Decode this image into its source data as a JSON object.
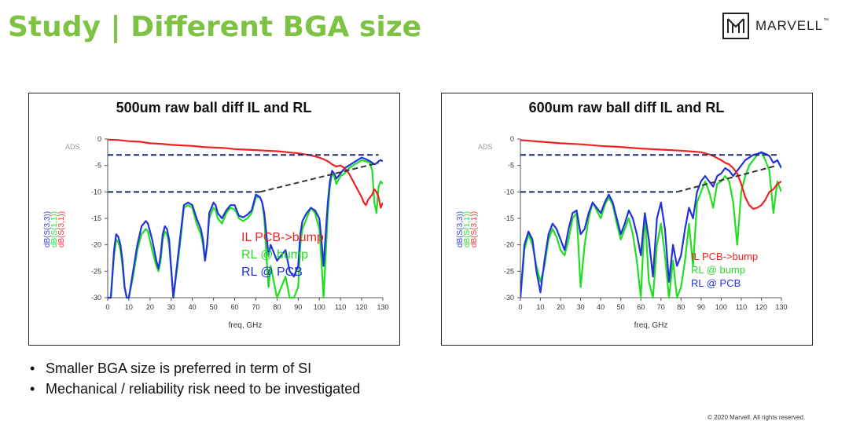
{
  "slide": {
    "title": "Study | Different BGA size",
    "logo_text": "MARVELL",
    "logo_tm": "™",
    "bullet_glyph": "•",
    "bullets": [
      "Smaller BGA size is preferred in term of SI",
      "Mechanical / reliability risk need to be investigated"
    ],
    "footer": "© 2020 Marvell. All rights reserved."
  },
  "chart_data": [
    {
      "type": "line",
      "title": "500um raw ball diff IL and RL",
      "watermark": "ADS",
      "xlabel": "freq, GHz",
      "ylabels": [
        {
          "text": "dB(S(3,3))",
          "color": "#3344dd"
        },
        {
          "text": "dB(S(1,1))",
          "color": "#33dd33"
        },
        {
          "text": "dB(S(3,1))",
          "color": "#ee3333"
        }
      ],
      "xlim": [
        0,
        130
      ],
      "ylim": [
        -30,
        0
      ],
      "xticks": [
        0,
        10,
        20,
        30,
        40,
        50,
        60,
        70,
        80,
        90,
        100,
        110,
        120,
        130
      ],
      "yticks": [
        0,
        -5,
        -10,
        -15,
        -20,
        -25,
        -30
      ],
      "legend_position": "bottom-center",
      "series": [
        {
          "name": "RL @ bump",
          "color": "#22dd22",
          "x": [
            0,
            1.5,
            3,
            4,
            5,
            6,
            7,
            8,
            9,
            10,
            12,
            14,
            16,
            18,
            19,
            21,
            23,
            24,
            25,
            26,
            27,
            28,
            29,
            31,
            33,
            35,
            36,
            38,
            40,
            42,
            44,
            45,
            46,
            47,
            48,
            50,
            51,
            52,
            54,
            56,
            58,
            60,
            61,
            62,
            64,
            66,
            68,
            70,
            72,
            73,
            74,
            75,
            76,
            77,
            78,
            80,
            82,
            84,
            86,
            88,
            90,
            91,
            92,
            94,
            96,
            98,
            100,
            101,
            102,
            103,
            104,
            105,
            106,
            107,
            108,
            110,
            112,
            114,
            116,
            118,
            120,
            122,
            124,
            125,
            126,
            127,
            128,
            129,
            130
          ],
          "y": [
            -30,
            -30,
            -22,
            -19,
            -19.5,
            -21,
            -24,
            -28,
            -30,
            -30,
            -26,
            -21,
            -18,
            -17,
            -17.5,
            -21,
            -24,
            -25,
            -23,
            -19,
            -17.5,
            -18,
            -20,
            -30,
            -24,
            -17,
            -13,
            -12.5,
            -13,
            -16,
            -18,
            -20,
            -23,
            -20,
            -15,
            -13,
            -13.5,
            -15,
            -16,
            -14,
            -13,
            -13.3,
            -14,
            -15,
            -15.5,
            -15,
            -14,
            -11,
            -11,
            -12,
            -15,
            -22,
            -28,
            -24,
            -26,
            -30,
            -28,
            -26,
            -30,
            -30,
            -28,
            -20,
            -17,
            -15,
            -13,
            -14,
            -17,
            -23,
            -30,
            -22,
            -14,
            -9,
            -6.5,
            -7,
            -8.5,
            -7,
            -6.5,
            -5.5,
            -5,
            -4.5,
            -4,
            -4.2,
            -4.5,
            -6,
            -12,
            -14,
            -9,
            -8,
            -8.5
          ]
        },
        {
          "name": "RL @ PCB",
          "color": "#2233dd",
          "x": [
            0,
            1.5,
            3,
            4,
            5,
            6,
            7,
            8,
            9,
            10,
            12,
            14,
            16,
            18,
            19,
            21,
            23,
            24,
            25,
            26,
            27,
            28,
            29,
            31,
            33,
            35,
            36,
            38,
            40,
            42,
            44,
            45,
            46,
            47,
            48,
            50,
            51,
            52,
            54,
            56,
            58,
            60,
            61,
            62,
            64,
            66,
            68,
            70,
            72,
            73,
            74,
            75,
            76,
            77,
            78,
            80,
            82,
            84,
            86,
            88,
            90,
            91,
            92,
            94,
            96,
            98,
            100,
            101,
            102,
            103,
            104,
            105,
            106,
            107,
            108,
            110,
            112,
            114,
            116,
            118,
            120,
            122,
            124,
            125,
            126,
            127,
            128,
            129,
            130
          ],
          "y": [
            -30,
            -30,
            -21,
            -18,
            -18.5,
            -20,
            -23,
            -28,
            -30,
            -30,
            -25,
            -20,
            -16.5,
            -15.5,
            -16,
            -19,
            -23,
            -24.5,
            -22,
            -18,
            -16.5,
            -17,
            -19,
            -30,
            -23,
            -16,
            -12.5,
            -12,
            -12.5,
            -15,
            -17,
            -19,
            -23,
            -20,
            -14,
            -12,
            -12.5,
            -14,
            -15,
            -13.5,
            -12.5,
            -12.5,
            -13.5,
            -14.5,
            -14.8,
            -14.3,
            -13.5,
            -10.5,
            -11,
            -12,
            -14,
            -18,
            -22,
            -20,
            -21,
            -23,
            -22,
            -21,
            -25,
            -26,
            -24,
            -18,
            -15.5,
            -14,
            -13,
            -13.5,
            -15,
            -19,
            -24,
            -18,
            -12,
            -8,
            -6,
            -6.5,
            -7.5,
            -6.5,
            -5.5,
            -5,
            -4.5,
            -4,
            -3.5,
            -3.8,
            -4.2,
            -4.5,
            -4.8,
            -4.6,
            -4.2,
            -4,
            -4.2
          ]
        },
        {
          "name": "IL PCB->bump",
          "color": "#ee2222",
          "x": [
            0,
            5,
            10,
            15,
            20,
            25,
            30,
            35,
            40,
            45,
            50,
            55,
            60,
            65,
            70,
            75,
            80,
            85,
            90,
            95,
            100,
            102,
            104,
            106,
            108,
            110,
            112,
            114,
            116,
            118,
            120,
            121,
            122,
            123,
            124,
            125,
            126,
            127,
            128,
            129,
            130
          ],
          "y": [
            -0.1,
            -0.2,
            -0.4,
            -0.5,
            -0.8,
            -0.9,
            -1.1,
            -1.2,
            -1.3,
            -1.5,
            -1.6,
            -1.7,
            -1.9,
            -2,
            -2.1,
            -2.2,
            -2.3,
            -2.5,
            -2.7,
            -3,
            -3.5,
            -3.8,
            -4.2,
            -4.8,
            -5.2,
            -5,
            -5.5,
            -6.5,
            -8,
            -9.5,
            -11,
            -12,
            -12.5,
            -11.5,
            -11,
            -10.5,
            -9.5,
            -10,
            -11,
            -13,
            -12
          ]
        }
      ],
      "reference_lines": [
        {
          "x": [
            0,
            128
          ],
          "y": [
            -3,
            -3
          ],
          "style": "dashed",
          "color": "#1a2a6c"
        },
        {
          "x": [
            0,
            72
          ],
          "y": [
            -10,
            -10
          ],
          "style": "dashed",
          "color": "#1a2a6c"
        },
        {
          "x": [
            72,
            128
          ],
          "y": [
            -10,
            -4.5
          ],
          "style": "dashed",
          "color": "#333333"
        }
      ]
    },
    {
      "type": "line",
      "title": "600um raw ball diff IL and RL",
      "watermark": "ADS",
      "xlabel": "freq, GHz",
      "ylabels": [
        {
          "text": "dB(S(3,3))",
          "color": "#3344dd"
        },
        {
          "text": "dB(S(1,1))",
          "color": "#33dd33"
        },
        {
          "text": "dB(S(3,1))",
          "color": "#ee3333"
        }
      ],
      "xlim": [
        0,
        130
      ],
      "ylim": [
        -30,
        0
      ],
      "xticks": [
        0,
        10,
        20,
        30,
        40,
        50,
        60,
        70,
        80,
        90,
        100,
        110,
        120,
        130
      ],
      "yticks": [
        0,
        -5,
        -10,
        -15,
        -20,
        -25,
        -30
      ],
      "legend_position": "bottom-right",
      "series": [
        {
          "name": "RL @ bump",
          "color": "#22dd22",
          "x": [
            0,
            2,
            4,
            6,
            8,
            10,
            12,
            14,
            16,
            18,
            20,
            22,
            24,
            26,
            28,
            30,
            32,
            34,
            36,
            38,
            40,
            42,
            44,
            46,
            48,
            50,
            52,
            54,
            56,
            58,
            60,
            62,
            64,
            66,
            68,
            70,
            72,
            74,
            76,
            78,
            80,
            82,
            84,
            86,
            88,
            90,
            92,
            94,
            96,
            98,
            100,
            102,
            104,
            106,
            108,
            110,
            112,
            114,
            116,
            118,
            120,
            122,
            124,
            126,
            128,
            130
          ],
          "y": [
            -30,
            -21,
            -18,
            -20,
            -24,
            -27,
            -24,
            -19,
            -17,
            -18.5,
            -21,
            -22,
            -19,
            -15,
            -14,
            -28,
            -20,
            -15,
            -12,
            -13.5,
            -15,
            -12.5,
            -11,
            -12.5,
            -16,
            -19,
            -17,
            -15,
            -18,
            -23,
            -30,
            -14,
            -27,
            -30,
            -20,
            -16,
            -22,
            -30,
            -23,
            -30,
            -28,
            -23,
            -16,
            -24,
            -12,
            -10,
            -8,
            -10,
            -13,
            -8.5,
            -8,
            -7,
            -8,
            -12,
            -20,
            -10,
            -7,
            -5,
            -4,
            -3,
            -2.5,
            -4,
            -6,
            -14,
            -8,
            -10
          ]
        },
        {
          "name": "RL @ PCB",
          "color": "#2233dd",
          "x": [
            0,
            2,
            4,
            6,
            8,
            10,
            12,
            14,
            16,
            18,
            20,
            22,
            24,
            26,
            28,
            30,
            32,
            34,
            36,
            38,
            40,
            42,
            44,
            46,
            48,
            50,
            52,
            54,
            56,
            58,
            60,
            62,
            64,
            66,
            68,
            70,
            72,
            74,
            76,
            78,
            80,
            82,
            84,
            86,
            88,
            90,
            92,
            94,
            96,
            98,
            100,
            102,
            104,
            106,
            108,
            110,
            112,
            114,
            116,
            118,
            120,
            122,
            124,
            126,
            128,
            130
          ],
          "y": [
            -30,
            -20,
            -17.5,
            -19,
            -25,
            -29,
            -23,
            -18,
            -16,
            -17,
            -19,
            -21,
            -17,
            -14,
            -13.5,
            -18,
            -17,
            -14,
            -12,
            -13,
            -14,
            -12,
            -10.5,
            -12,
            -15,
            -18,
            -16,
            -13.5,
            -15,
            -18,
            -22,
            -14,
            -19,
            -26,
            -15,
            -12,
            -17,
            -27,
            -20,
            -24,
            -22,
            -17,
            -13,
            -15,
            -10,
            -8,
            -7,
            -8,
            -9,
            -7,
            -6.5,
            -5.5,
            -6,
            -7,
            -6,
            -5,
            -4,
            -3.5,
            -3,
            -2.8,
            -2.5,
            -2.8,
            -3.2,
            -4.5,
            -4,
            -5.5
          ]
        },
        {
          "name": "IL PCB->bump",
          "color": "#ee2222",
          "x": [
            0,
            10,
            20,
            30,
            40,
            50,
            60,
            70,
            80,
            90,
            95,
            100,
            102,
            104,
            106,
            108,
            110,
            112,
            114,
            116,
            118,
            120,
            122,
            124,
            126,
            128,
            130
          ],
          "y": [
            -0.2,
            -0.5,
            -0.8,
            -1,
            -1.3,
            -1.5,
            -1.8,
            -2,
            -2.2,
            -2.5,
            -3,
            -4,
            -4.5,
            -4.8,
            -5.5,
            -6.5,
            -8.5,
            -11,
            -12.5,
            -13.2,
            -13,
            -12.5,
            -11.5,
            -10,
            -9.5,
            -8.5,
            -8
          ]
        }
      ],
      "reference_lines": [
        {
          "x": [
            0,
            128
          ],
          "y": [
            -3,
            -3
          ],
          "style": "dashed",
          "color": "#1a2a6c"
        },
        {
          "x": [
            0,
            78
          ],
          "y": [
            -10,
            -10
          ],
          "style": "dashed",
          "color": "#1a2a6c"
        },
        {
          "x": [
            78,
            128
          ],
          "y": [
            -10,
            -5
          ],
          "style": "dashed",
          "color": "#333333"
        }
      ]
    }
  ]
}
